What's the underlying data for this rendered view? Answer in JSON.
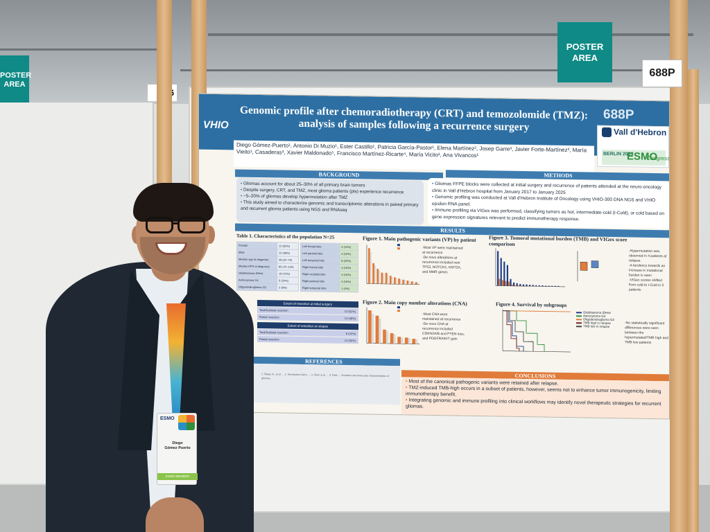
{
  "scene": {
    "sign_left": "POSTER\nAREA",
    "sign_right": "POSTER\nAREA",
    "board_number": "688P",
    "board_number_left": "6"
  },
  "poster": {
    "logo": "VHIO",
    "title": "Genomic profile after chemoradiotherapy (CRT) and temozolomide (TMZ): analysis of samples following a recurrence surgery",
    "number": "688P",
    "sponsor": "Vall d'Hebron",
    "congress_label": "BERLIN 2025",
    "congress_mark": "ESMO",
    "congress_sub": "Congress",
    "authors": "Diego Gómez-Puerto¹, Antonio Di Muzio¹, Ester Castillo¹, Patricia García-Pastor¹, Elena Martínez², Josep Garre³, Javier Forte-Martínez³, María Vieito¹, Casaderas³, Xavier Maldonado⁵, Francisco Martínez-Ricarte⁴, María Vicito¹, Ana Vivancos¹",
    "sections": {
      "background": "BACKGROUND",
      "methods": "METHODS",
      "results": "RESULTS",
      "references": "REFERENCES",
      "conclusions": "CONCLUSIONS"
    },
    "background_items": [
      "Gliomas account for about 25–30% of all primary brain tumors",
      "Despite surgery, CRT, and TMZ, most glioma patients (pts) experience recurrence",
      "~5–20% of gliomas develop hypermutation after TMZ",
      "This study aimed to characterize genomic and transcriptomic alterations in paired primary and recurrent glioma patients using NGS and RNAseq"
    ],
    "methods_items": [
      "Gliomas FFPE blocks were collected at initial surgery and recurrence of patients attended at the neuro-oncology clinic in Vall d'Hebron hospital from January 2017 to January 2025",
      "Genomic profiling was conducted at Vall d'Hebron Institute of Oncology using VHIO-300 DNA NGS and VHIO epsilon RNA panel.",
      "Immune profiling via VIGex was performed, classifying tumors as hot, intermediate-cold (I-Cold), or cold based on gene expression signatures relevant to predict immunotherapy response."
    ],
    "table1": {
      "title": "Table 1. Characteristics of the population N=25",
      "groups": [
        "Gender",
        "Age",
        "Diagnosis"
      ],
      "rows": [
        [
          "Female",
          "13 (52%)"
        ],
        [
          "Male",
          "12 (48%)"
        ],
        [
          "Median age at diagnosis",
          "48 (24–70)"
        ],
        [
          "Median KPS at diagnosis",
          "85 (70–100)"
        ],
        [
          "Glioblastoma IDHwt",
          "18 (72%)"
        ],
        [
          "Astrocytoma G4",
          "5 (20%)"
        ],
        [
          "Oligodendroglioma G2",
          "2 (8%)"
        ]
      ],
      "location_label": "Primary tumor location",
      "locations": [
        [
          "Left frontal lobe",
          "3 (12%)"
        ],
        [
          "Left parietal lobe",
          "4 (16%)"
        ],
        [
          "Left temporal lobe",
          "5 (20%)"
        ],
        [
          "Right frontal lobe",
          "4 (16%)"
        ],
        [
          "Right occipital lobe",
          "4 (16%)"
        ],
        [
          "Right parietal lobe",
          "4 (16%)"
        ],
        [
          "Right temporal lobe",
          "1 (4%)"
        ]
      ],
      "resection_initial": "Extent of resection at initial surgery",
      "resection_relapse": "Extent of resection at relapse",
      "resection_rows": [
        [
          "Total/Subtotal resection",
          "13 (52%)"
        ],
        [
          "Partial resection",
          "12 (48%)"
        ],
        [
          "Total/Subtotal resection",
          "8 (32%)"
        ],
        [
          "Partial resection",
          "14 (56%)"
        ]
      ]
    },
    "fig1": {
      "title": "Figure 1. Main pathogenic variants (VP) by patient",
      "xlabel": "Pathogenic variants",
      "ylabel": "Patients per alteration",
      "legend": [
        "Relapse",
        "Diagnosis"
      ],
      "notes": "-Most VP were maintained at recurrence\n-De novo alterations at recurrence included new TP53, NOTCH1, KMT2A, and MMR genes"
    },
    "fig2": {
      "title": "Figure 2. Main copy number alterations (CNA)",
      "xlabel": "Copy number alterations",
      "ylabel": "Patients per alteration",
      "legend": [
        "Relapse",
        "Diagnosis"
      ],
      "notes": "-Most CNA were maintained at recurrence\n-De novo CNA at recurrence included CDKN2A/B and PTEN loss, and PDGFRA/KIT gain"
    },
    "fig3": {
      "title": "Figure 3. Tumoral mutational burden (TMB) and VIGex score comparison",
      "xlabel": "Patients",
      "ylabel": "TMB (mut/Mb)",
      "legend": [
        "Diagnosis",
        "Recurrence"
      ],
      "box_ylabel": "VIGex score",
      "notes": "-Hypermutation was observed in 4 patients at relapse.\n-A tendency towards an increase in mutational burden is seen\n-VIGex scores shifted from cold to I-Cold in 5 patients"
    },
    "fig4": {
      "title": "Figure 4. Survival by subgroups",
      "xlabel": "Survival (months)",
      "ylabel": "Probability of Survival",
      "legend": [
        "Glioblastoma IDHwt",
        "Astrocytoma G4",
        "Oligodendroglioma G2",
        "TMB high in relapse",
        "TMB low in relapse"
      ],
      "ticks": [
        "0",
        "50",
        "100",
        "150",
        "200",
        "250"
      ],
      "notes": "-No statistically significant differences were seen between the hypermutated/TMB high and TMB low patients"
    },
    "references": "1. Stupp, R., et al. ... 2. Hernández-Calvo, ... 3. Chen et al. ... 4. Park, ... Evolution and molecular characterization of gliomas ...",
    "conclusions": [
      "Most of the canonical pathogenic variants were retained after relapse.",
      "TMZ-induced TMB-high occurs in a subset of patients, however, seems not to enhance tumor immunogenicity, limiting immunotherapy benefit.",
      "Integrating genomic and immune profiling into clinical workflows may identify novel therapeutic strategies for recurrent gliomas."
    ]
  },
  "badge": {
    "logo": "ESMO",
    "name": "Diego\nGómez Puerto",
    "role": "ESMO MEMBER"
  },
  "colors": {
    "poster_header": "#2d6fa3",
    "relapse": "#e07b3a",
    "diagnosis": "#1f3d8a",
    "sign": "#0f8a86"
  }
}
